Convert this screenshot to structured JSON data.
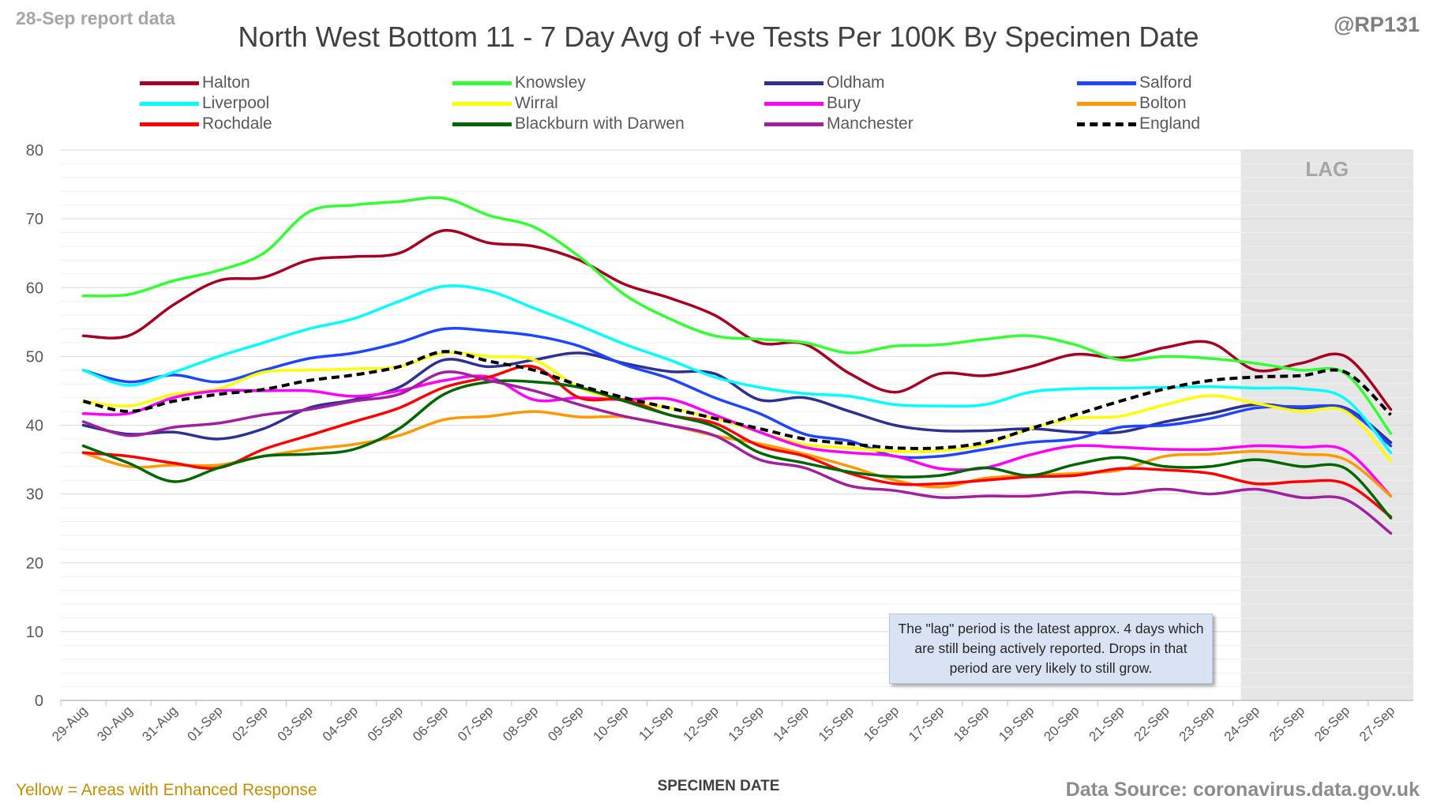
{
  "header": {
    "report_date": "28-Sep report data",
    "handle": "@RP131"
  },
  "footer": {
    "note": "Yellow = Areas with Enhanced Response",
    "source": "Data Source: coronavirus.data.gov.uk"
  },
  "annotation": {
    "lag_label": "LAG",
    "lag_note": "The \"lag\" period is the latest approx. 4 days which are still being actively reported. Drops in that period are very likely to still grow."
  },
  "chart_data": {
    "type": "line",
    "title": "North West Bottom 11 - 7 Day Avg of +ve Tests Per 100K By Specimen Date",
    "xlabel": "SPECIMEN DATE",
    "ylabel": "",
    "ylim": [
      0,
      80
    ],
    "yticks": [
      0,
      10,
      20,
      30,
      40,
      50,
      60,
      70,
      80
    ],
    "grid": true,
    "legend_position": "top",
    "lag_period": [
      "24-Sep",
      "27-Sep"
    ],
    "categories": [
      "29-Aug",
      "30-Aug",
      "31-Aug",
      "01-Sep",
      "02-Sep",
      "03-Sep",
      "04-Sep",
      "05-Sep",
      "06-Sep",
      "07-Sep",
      "08-Sep",
      "09-Sep",
      "10-Sep",
      "11-Sep",
      "12-Sep",
      "13-Sep",
      "14-Sep",
      "15-Sep",
      "16-Sep",
      "17-Sep",
      "18-Sep",
      "19-Sep",
      "20-Sep",
      "21-Sep",
      "22-Sep",
      "23-Sep",
      "24-Sep",
      "25-Sep",
      "26-Sep",
      "27-Sep"
    ],
    "series": [
      {
        "name": "Halton",
        "color": "#a50021",
        "dashed": false,
        "values": [
          53,
          53,
          57.5,
          61,
          61.5,
          64,
          64.5,
          65,
          68.3,
          66.5,
          66,
          64,
          60.5,
          58.5,
          56,
          52,
          51.8,
          47.5,
          44.8,
          47.5,
          47.2,
          48.5,
          50.3,
          49.8,
          51.3,
          52,
          48,
          49,
          50,
          42.3
        ]
      },
      {
        "name": "Knowsley",
        "color": "#33ff33",
        "dashed": false,
        "values": [
          58.8,
          59,
          61,
          62.5,
          65,
          71,
          72,
          72.5,
          73,
          70.5,
          68.8,
          64.5,
          59,
          55.5,
          53,
          52.5,
          52,
          50.5,
          51.5,
          51.7,
          52.5,
          53,
          51.7,
          49.5,
          50,
          49.7,
          49,
          48,
          47.5,
          38.8
        ]
      },
      {
        "name": "Oldham",
        "color": "#2e3192",
        "dashed": false,
        "values": [
          40,
          38.7,
          39,
          38,
          39.5,
          42.5,
          43.7,
          45.5,
          49.5,
          48.5,
          49.5,
          50.5,
          49,
          47.8,
          47.5,
          43.7,
          44,
          42,
          40,
          39.2,
          39.2,
          39.5,
          39,
          39,
          40.5,
          41.7,
          43,
          42.5,
          42.5,
          37.5
        ]
      },
      {
        "name": "Salford",
        "color": "#1f45ff",
        "dashed": false,
        "values": [
          48,
          46.3,
          47.3,
          46.3,
          48,
          49.7,
          50.5,
          52,
          54,
          53.7,
          53,
          51.5,
          48.8,
          46.8,
          44,
          41.7,
          38.7,
          37.7,
          35.5,
          35.5,
          36.5,
          37.5,
          38,
          39.7,
          40,
          41,
          42.5,
          42.7,
          42.3,
          37
        ]
      },
      {
        "name": "Liverpool",
        "color": "#00ffff",
        "dashed": false,
        "values": [
          48,
          45.8,
          47.7,
          50,
          52,
          54,
          55.5,
          58,
          60.2,
          59.5,
          57,
          54.5,
          51.8,
          49.5,
          47,
          45.5,
          44.6,
          44.2,
          43,
          42.8,
          43,
          44.8,
          45.3,
          45.4,
          45.5,
          45.6,
          45.4,
          45.3,
          43.8,
          36
        ]
      },
      {
        "name": "Wirral",
        "color": "#ffff00",
        "dashed": false,
        "values": [
          43.5,
          42.8,
          44.5,
          45.3,
          47.7,
          48,
          48.2,
          48.5,
          50.5,
          50,
          49.5,
          45.5,
          43.5,
          42.5,
          41,
          39,
          37.2,
          36.7,
          36.2,
          36.3,
          37.2,
          39.5,
          41,
          41.3,
          43,
          44.3,
          43.2,
          42,
          42,
          34.8
        ]
      },
      {
        "name": "Bury",
        "color": "#ff00ff",
        "dashed": false,
        "values": [
          41.7,
          41.7,
          44,
          45,
          45,
          45,
          44.2,
          45,
          46.5,
          47,
          43.7,
          44,
          43.7,
          43.8,
          41.5,
          39,
          36.8,
          36,
          35.5,
          33.7,
          33.8,
          35.7,
          37,
          36.8,
          36.5,
          36.5,
          37,
          36.8,
          36.3,
          29.7
        ]
      },
      {
        "name": "Bolton",
        "color": "#ff9900",
        "dashed": false,
        "values": [
          36,
          34,
          34.2,
          34.2,
          35.5,
          36.5,
          37.2,
          38.5,
          40.8,
          41.3,
          42,
          41.2,
          41.2,
          40,
          38.5,
          37.3,
          35.8,
          34,
          32,
          31,
          32.3,
          32.7,
          33,
          33.5,
          35.5,
          35.8,
          36.2,
          35.8,
          35,
          29.7
        ]
      },
      {
        "name": "Rochdale",
        "color": "#ff0000",
        "dashed": false,
        "values": [
          36,
          35.5,
          34.5,
          33.8,
          36.5,
          38.5,
          40.5,
          42.5,
          45.5,
          47,
          48.5,
          44,
          43.7,
          41.5,
          40.3,
          37,
          35.5,
          33,
          31.5,
          31.5,
          32,
          32.5,
          32.7,
          33.7,
          33.5,
          33,
          31.5,
          31.8,
          31.5,
          26.7
        ]
      },
      {
        "name": "Blackburn with Darwen",
        "color": "#006600",
        "dashed": false,
        "values": [
          37,
          34.5,
          31.8,
          33.8,
          35.5,
          35.8,
          36.5,
          39.5,
          44.5,
          46.3,
          46.3,
          45.5,
          43.5,
          41.5,
          39.8,
          36,
          34.5,
          33.2,
          32.5,
          32.7,
          33.8,
          32.7,
          34.3,
          35.3,
          34,
          34,
          35,
          34,
          33.7,
          26.5
        ]
      },
      {
        "name": "Manchester",
        "color": "#a020a0",
        "dashed": false,
        "values": [
          40.5,
          38.5,
          39.7,
          40.3,
          41.5,
          42.3,
          43.5,
          44.5,
          47.7,
          46.5,
          45,
          43,
          41.3,
          40,
          38.5,
          35,
          33.8,
          31.2,
          30.5,
          29.5,
          29.7,
          29.7,
          30.3,
          30,
          30.7,
          30,
          30.7,
          29.5,
          29.2,
          24.3
        ]
      },
      {
        "name": "England",
        "color": "#000000",
        "dashed": true,
        "values": [
          43.5,
          42,
          43.5,
          44.5,
          45.2,
          46.5,
          47.3,
          48.5,
          50.7,
          49.3,
          48,
          45.8,
          44,
          42.5,
          41,
          39.5,
          38,
          37.3,
          36.7,
          36.7,
          37.5,
          39.5,
          41.5,
          43.5,
          45.3,
          46.5,
          47,
          47.2,
          47.7,
          41.5
        ]
      }
    ]
  }
}
